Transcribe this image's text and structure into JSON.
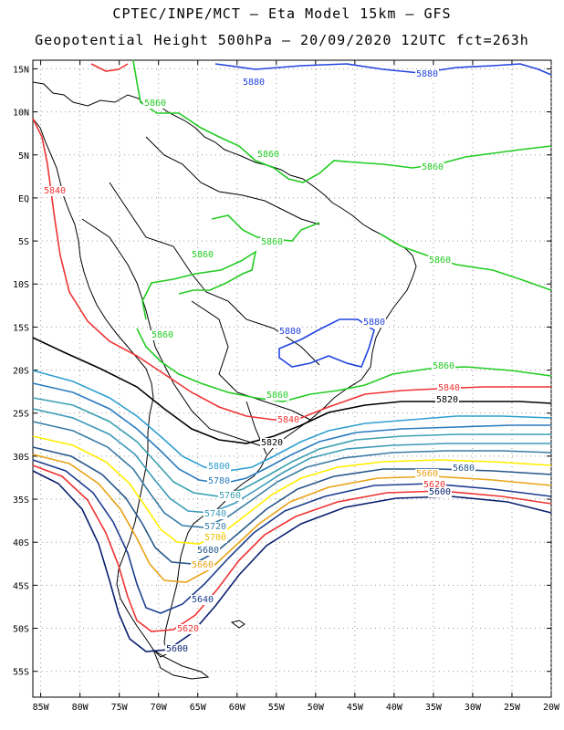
{
  "title": {
    "line1": "CPTEC/INPE/MCT –  Eta Model 15km – GFS",
    "line2": "Geopotential Height 500hPa – 20/09/2020 12UTC fct=263h"
  },
  "axes": {
    "lat_labels": [
      "15N",
      "10N",
      "5N",
      "EQ",
      "5S",
      "10S",
      "15S",
      "20S",
      "25S",
      "30S",
      "35S",
      "40S",
      "45S",
      "50S",
      "55S"
    ],
    "lon_labels": [
      "85W",
      "80W",
      "75W",
      "70W",
      "65W",
      "60W",
      "55W",
      "50W",
      "45W",
      "40W",
      "35W",
      "30W",
      "25W",
      "20W"
    ],
    "lat_range": [
      16,
      -58
    ],
    "lon_range": [
      -86,
      -20
    ],
    "grid": "dotted"
  },
  "contour_colors": {
    "5580": "#000066",
    "5600": "#0a1f6e",
    "5620": "#ee3333",
    "5640": "#1c3d8f",
    "5660": "#e8a318",
    "5680": "#26568a",
    "5700": "#ffee00",
    "5720": "#3a7ca6",
    "5740": "#3a9ab8",
    "5760": "#3aa0b0",
    "5780": "#2a7bbf",
    "5800": "#2f9fd0",
    "5820": "#000000",
    "5840": "#ee3333",
    "5860": "#22cc22",
    "5880": "#2244dd"
  },
  "contour_labels": [
    {
      "text": "5880",
      "color": "#2244dd"
    },
    {
      "text": "5880",
      "color": "#2244dd"
    },
    {
      "text": "5860",
      "color": "#22cc22"
    },
    {
      "text": "5860",
      "color": "#22cc22"
    },
    {
      "text": "5860",
      "color": "#22cc22"
    },
    {
      "text": "5840",
      "color": "#ee3333"
    },
    {
      "text": "5860",
      "color": "#22cc22"
    },
    {
      "text": "5860",
      "color": "#22cc22"
    },
    {
      "text": "5860",
      "color": "#22cc22"
    },
    {
      "text": "5880",
      "color": "#2244dd"
    },
    {
      "text": "5880",
      "color": "#2244dd"
    },
    {
      "text": "5860",
      "color": "#22cc22"
    },
    {
      "text": "5860",
      "color": "#22cc22"
    },
    {
      "text": "5860",
      "color": "#22cc22"
    },
    {
      "text": "5840",
      "color": "#ee3333"
    },
    {
      "text": "5820",
      "color": "#000000"
    },
    {
      "text": "5840",
      "color": "#ee3333"
    },
    {
      "text": "5820",
      "color": "#000000"
    },
    {
      "text": "5800",
      "color": "#2f9fd0"
    },
    {
      "text": "5780",
      "color": "#2a7bbf"
    },
    {
      "text": "5760",
      "color": "#3aa0b0"
    },
    {
      "text": "5740",
      "color": "#3a9ab8"
    },
    {
      "text": "5720",
      "color": "#3a7ca6"
    },
    {
      "text": "5700",
      "color": "#e8c000"
    },
    {
      "text": "5680",
      "color": "#26568a"
    },
    {
      "text": "5660",
      "color": "#e8a318"
    },
    {
      "text": "5640",
      "color": "#1c3d8f"
    },
    {
      "text": "5620",
      "color": "#ee3333"
    },
    {
      "text": "5600",
      "color": "#0a1f6e"
    },
    {
      "text": "5680",
      "color": "#26568a"
    },
    {
      "text": "5660",
      "color": "#e8a318"
    },
    {
      "text": "5620",
      "color": "#ee3333"
    },
    {
      "text": "5600",
      "color": "#0a1f6e"
    }
  ]
}
